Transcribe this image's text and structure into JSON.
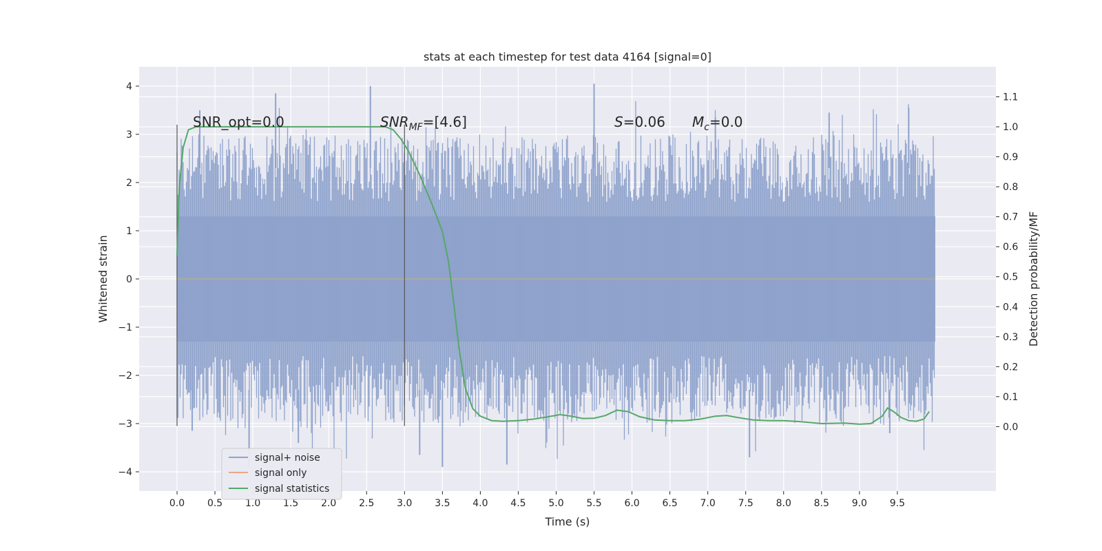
{
  "chart_data": {
    "type": "line",
    "title": "stats at each timestep for test data 4164 [signal=0]",
    "xlabel": "Time (s)",
    "ylabel": "Whitened strain",
    "y2label": "Detection probability/MF",
    "xlim": [
      -0.5,
      10.8
    ],
    "ylim": [
      -4.4,
      4.4
    ],
    "y2lim": [
      -0.215,
      1.2
    ],
    "x_ticks": [
      0.0,
      0.5,
      1.0,
      1.5,
      2.0,
      2.5,
      3.0,
      3.5,
      4.0,
      4.5,
      5.0,
      5.5,
      6.0,
      6.5,
      7.0,
      7.5,
      8.0,
      8.5,
      9.0,
      9.5
    ],
    "x_tick_labels": [
      "0.0",
      "0.5",
      "1.0",
      "1.5",
      "2.0",
      "2.5",
      "3.0",
      "3.5",
      "4.0",
      "4.5",
      "5.0",
      "5.5",
      "6.0",
      "6.5",
      "7.0",
      "7.5",
      "8.0",
      "8.5",
      "9.0",
      "9.5"
    ],
    "y_ticks": [
      4,
      3,
      2,
      1,
      0,
      -1,
      -2,
      -3,
      -4
    ],
    "y_tick_labels": [
      "4",
      "3",
      "2",
      "1",
      "0",
      "−1",
      "−2",
      "−3",
      "−4"
    ],
    "y2_ticks": [
      1.1,
      1.0,
      0.9,
      0.8,
      0.7,
      0.6,
      0.5,
      0.4,
      0.3,
      0.2,
      0.1,
      0.0
    ],
    "y2_tick_labels": [
      "1.1",
      "1.0",
      "0.9",
      "0.8",
      "0.7",
      "0.6",
      "0.5",
      "0.4",
      "0.3",
      "0.2",
      "0.1",
      "0.0"
    ],
    "grid": true,
    "vertical_markers": [
      {
        "x": 0.0,
        "y_range": [
          -3.05,
          3.2
        ]
      },
      {
        "x": 3.0,
        "y_range": [
          -3.05,
          3.2
        ]
      }
    ],
    "annotations": {
      "snr_opt": "SNR_opt=0.0",
      "snr_mf_main": "SNR",
      "snr_mf_sub": "MF",
      "snr_mf_value": "=[4.6]",
      "s_main": "S",
      "s_value": "=0.06",
      "mc_main": "M",
      "mc_sub": "c",
      "mc_value": "=0.0"
    },
    "noise": {
      "x_range": [
        0.0,
        10.0
      ],
      "core_range": [
        -1.3,
        1.3
      ],
      "envelope": {
        "upper_mean": 2.3,
        "lower_mean": -2.3
      },
      "peaks": [
        {
          "x": 0.3,
          "y": 3.5
        },
        {
          "x": 1.3,
          "y": 3.85
        },
        {
          "x": 2.55,
          "y": 4.0
        },
        {
          "x": 5.5,
          "y": 4.05
        },
        {
          "x": 9.65,
          "y": 3.55
        },
        {
          "x": 8.6,
          "y": 3.45
        },
        {
          "x": 7.1,
          "y": 3.35
        },
        {
          "x": 0.95,
          "y": -3.9
        },
        {
          "x": 3.5,
          "y": -3.9
        },
        {
          "x": 4.35,
          "y": -3.85
        },
        {
          "x": 7.55,
          "y": -3.7
        },
        {
          "x": 3.2,
          "y": -3.65
        },
        {
          "x": 1.6,
          "y": -3.4
        },
        {
          "x": 0.2,
          "y": -3.15
        },
        {
          "x": 9.4,
          "y": -3.2
        }
      ]
    },
    "series": [
      {
        "name": "signal+ noise",
        "color": "#8fa3cc"
      },
      {
        "name": "signal only",
        "color": "#e8a787"
      },
      {
        "name": "signal statistics",
        "color": "#55a868",
        "axis": "right",
        "x": [
          0.0,
          0.03,
          0.08,
          0.15,
          0.25,
          0.4,
          0.6,
          1.0,
          1.5,
          2.0,
          2.5,
          2.75,
          2.85,
          2.95,
          3.05,
          3.2,
          3.35,
          3.5,
          3.58,
          3.65,
          3.72,
          3.8,
          3.9,
          4.0,
          4.15,
          4.3,
          4.5,
          4.7,
          4.9,
          5.05,
          5.2,
          5.35,
          5.5,
          5.65,
          5.8,
          5.95,
          6.1,
          6.3,
          6.5,
          6.7,
          6.9,
          7.1,
          7.25,
          7.4,
          7.6,
          7.8,
          8.0,
          8.2,
          8.5,
          8.8,
          9.0,
          9.15,
          9.3,
          9.37,
          9.45,
          9.55,
          9.65,
          9.75,
          9.85,
          9.92
        ],
        "y": [
          0.57,
          0.8,
          0.93,
          0.99,
          1.0,
          1.0,
          1.0,
          1.0,
          1.0,
          1.0,
          1.0,
          1.0,
          0.99,
          0.96,
          0.92,
          0.84,
          0.75,
          0.65,
          0.55,
          0.41,
          0.26,
          0.13,
          0.06,
          0.035,
          0.02,
          0.018,
          0.02,
          0.025,
          0.033,
          0.04,
          0.035,
          0.027,
          0.028,
          0.037,
          0.055,
          0.05,
          0.033,
          0.022,
          0.02,
          0.02,
          0.025,
          0.035,
          0.037,
          0.03,
          0.022,
          0.02,
          0.02,
          0.017,
          0.01,
          0.012,
          0.008,
          0.01,
          0.035,
          0.062,
          0.05,
          0.03,
          0.02,
          0.018,
          0.025,
          0.05
        ]
      }
    ],
    "legend": {
      "placement": "lower-left",
      "entries": [
        "signal+ noise",
        "signal only",
        "signal statistics"
      ]
    },
    "colors": {
      "plot_bg": "#eaeaf2",
      "grid": "#ffffff",
      "noise": "#8fa3cc",
      "signal_only": "#e8a787",
      "stats": "#55a868",
      "marker": "#555555"
    }
  }
}
